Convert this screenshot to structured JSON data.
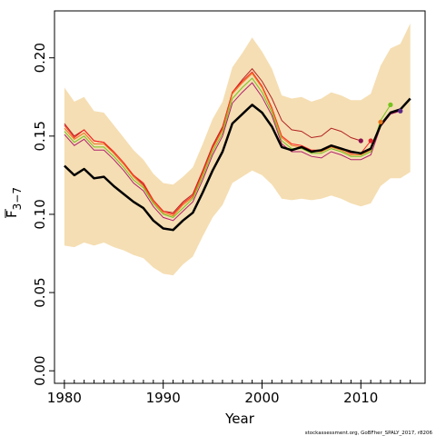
{
  "chart_data": {
    "type": "line",
    "title": "",
    "xlabel": "Year",
    "ylabel_main": "F",
    "ylabel_sub": "3−7",
    "xlim": [
      1979,
      2016.5
    ],
    "ylim": [
      -0.008,
      0.23
    ],
    "xticks": [
      1980,
      1990,
      2000,
      2010
    ],
    "yticks": [
      0.0,
      0.05,
      0.1,
      0.15,
      0.2
    ],
    "ytick_labels": [
      "0.00",
      "0.05",
      "0.10",
      "0.15",
      "0.20"
    ],
    "grid": false,
    "legend": "none",
    "x": [
      1980,
      1981,
      1982,
      1983,
      1984,
      1985,
      1986,
      1987,
      1988,
      1989,
      1990,
      1991,
      1992,
      1993,
      1994,
      1995,
      1996,
      1997,
      1998,
      1999,
      2000,
      2001,
      2002,
      2003,
      2004,
      2005,
      2006,
      2007,
      2008,
      2009,
      2010,
      2011,
      2012,
      2013,
      2014,
      2015
    ],
    "band": {
      "lower": [
        0.08,
        0.079,
        0.082,
        0.08,
        0.082,
        0.079,
        0.077,
        0.074,
        0.072,
        0.066,
        0.062,
        0.061,
        0.068,
        0.073,
        0.086,
        0.098,
        0.106,
        0.12,
        0.124,
        0.128,
        0.125,
        0.119,
        0.11,
        0.109,
        0.11,
        0.109,
        0.11,
        0.112,
        0.11,
        0.107,
        0.105,
        0.107,
        0.118,
        0.123,
        0.123,
        0.127
      ],
      "upper": [
        0.181,
        0.172,
        0.175,
        0.166,
        0.165,
        0.157,
        0.149,
        0.141,
        0.135,
        0.126,
        0.12,
        0.119,
        0.124,
        0.13,
        0.145,
        0.161,
        0.172,
        0.194,
        0.203,
        0.213,
        0.204,
        0.193,
        0.176,
        0.174,
        0.175,
        0.172,
        0.174,
        0.178,
        0.176,
        0.173,
        0.173,
        0.177,
        0.195,
        0.206,
        0.209,
        0.222
      ],
      "color": "#F5DEB3"
    },
    "main_series": {
      "color": "#000000",
      "values": [
        0.131,
        0.125,
        0.129,
        0.123,
        0.124,
        0.118,
        0.113,
        0.108,
        0.104,
        0.096,
        0.091,
        0.09,
        0.096,
        0.101,
        0.114,
        0.128,
        0.14,
        0.158,
        0.164,
        0.17,
        0.165,
        0.156,
        0.143,
        0.141,
        0.143,
        0.14,
        0.141,
        0.144,
        0.142,
        0.14,
        0.139,
        0.142,
        0.157,
        0.165,
        0.167,
        0.174
      ]
    },
    "retro_series": [
      {
        "color": "#B22222",
        "end_year": 2010,
        "dot_color": "#880E4F",
        "values": [
          0.158,
          0.15,
          0.154,
          0.147,
          0.146,
          0.139,
          0.132,
          0.125,
          0.119,
          0.109,
          0.102,
          0.101,
          0.108,
          0.113,
          0.128,
          0.144,
          0.156,
          0.178,
          0.186,
          0.193,
          0.185,
          0.174,
          0.16,
          0.154,
          0.153,
          0.149,
          0.15,
          0.155,
          0.153,
          0.149,
          0.147
        ]
      },
      {
        "color": "#FF2020",
        "end_year": 2011,
        "dot_color": "#E3242B",
        "values": [
          0.157,
          0.149,
          0.154,
          0.147,
          0.146,
          0.14,
          0.133,
          0.125,
          0.12,
          0.109,
          0.102,
          0.1,
          0.107,
          0.112,
          0.127,
          0.143,
          0.155,
          0.178,
          0.185,
          0.191,
          0.182,
          0.168,
          0.15,
          0.145,
          0.144,
          0.141,
          0.141,
          0.143,
          0.142,
          0.139,
          0.139,
          0.147
        ]
      },
      {
        "color": "#E8751A",
        "end_year": 2012,
        "dot_color": "#E8751A",
        "values": [
          0.155,
          0.148,
          0.152,
          0.145,
          0.145,
          0.139,
          0.132,
          0.124,
          0.118,
          0.108,
          0.101,
          0.099,
          0.106,
          0.111,
          0.126,
          0.142,
          0.154,
          0.177,
          0.184,
          0.19,
          0.181,
          0.167,
          0.149,
          0.144,
          0.143,
          0.14,
          0.14,
          0.143,
          0.141,
          0.138,
          0.138,
          0.141,
          0.159
        ]
      },
      {
        "color": "#76C21E",
        "end_year": 2013,
        "dot_color": "#76C21E",
        "values": [
          0.153,
          0.146,
          0.15,
          0.143,
          0.143,
          0.137,
          0.13,
          0.122,
          0.117,
          0.107,
          0.1,
          0.098,
          0.104,
          0.11,
          0.124,
          0.14,
          0.152,
          0.174,
          0.181,
          0.187,
          0.178,
          0.165,
          0.147,
          0.142,
          0.142,
          0.139,
          0.139,
          0.142,
          0.14,
          0.137,
          0.137,
          0.14,
          0.16,
          0.17
        ]
      },
      {
        "color": "#B0206E",
        "end_year": 2014,
        "dot_color": "#5B2A86",
        "values": [
          0.151,
          0.144,
          0.148,
          0.141,
          0.141,
          0.135,
          0.128,
          0.12,
          0.115,
          0.105,
          0.098,
          0.096,
          0.102,
          0.108,
          0.122,
          0.138,
          0.15,
          0.171,
          0.178,
          0.184,
          0.175,
          0.163,
          0.145,
          0.14,
          0.14,
          0.137,
          0.136,
          0.14,
          0.138,
          0.135,
          0.135,
          0.138,
          0.156,
          0.164,
          0.166
        ]
      }
    ]
  },
  "credit": "stockassessment.org, GoBFher_SPALY_2017, r8206"
}
